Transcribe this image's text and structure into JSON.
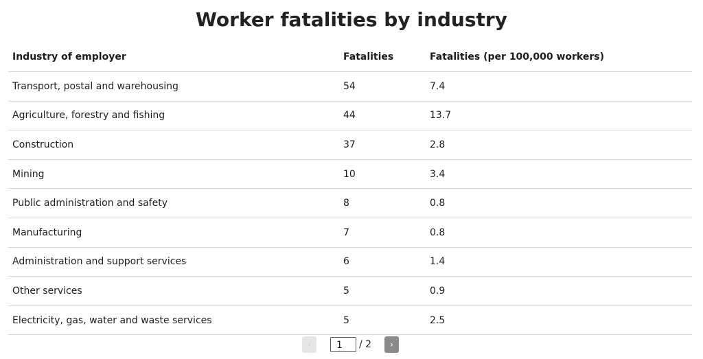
{
  "title": "Worker fatalities by industry",
  "table": {
    "headers": [
      "Industry of employer",
      "Fatalities",
      "Fatalities (per 100,000 workers)"
    ],
    "rows": [
      [
        "Transport, postal and warehousing",
        "54",
        "7.4"
      ],
      [
        "Agriculture, forestry and fishing",
        "44",
        "13.7"
      ],
      [
        "Construction",
        "37",
        "2.8"
      ],
      [
        "Mining",
        "10",
        "3.4"
      ],
      [
        "Public administration and safety",
        "8",
        "0.8"
      ],
      [
        "Manufacturing",
        "7",
        "0.8"
      ],
      [
        "Administration and support services",
        "6",
        "1.4"
      ],
      [
        "Other services",
        "5",
        "0.9"
      ],
      [
        "Electricity, gas, water and waste services",
        "5",
        "2.5"
      ]
    ]
  },
  "pagination": {
    "page": "1",
    "total": "/ 2"
  }
}
